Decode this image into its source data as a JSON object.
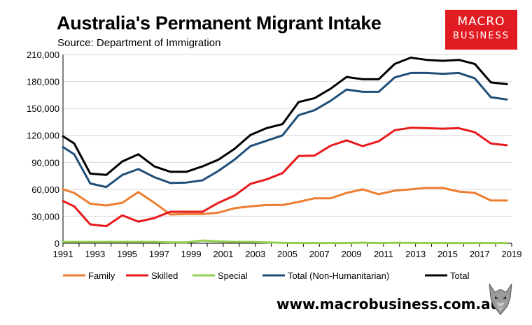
{
  "header": {
    "title": "Australia's Permanent Migrant Intake",
    "subtitle": "Source: Department of Immigration"
  },
  "brand": {
    "logo_line1": "MACRO",
    "logo_line2": "BUSINESS",
    "url": "www.macrobusiness.com.au",
    "logo_color": "#e11b22"
  },
  "chart_data": {
    "type": "line",
    "title": "Australia's Permanent Migrant Intake",
    "xlabel": "",
    "ylabel": "",
    "x": [
      1991,
      1992,
      1993,
      1994,
      1995,
      1996,
      1997,
      1998,
      1999,
      2000,
      2001,
      2002,
      2003,
      2004,
      2005,
      2006,
      2007,
      2008,
      2009,
      2010,
      2011,
      2012,
      2013,
      2014,
      2015,
      2016,
      2017,
      2018,
      2019
    ],
    "xlim": [
      1991,
      2019
    ],
    "ylim": [
      0,
      210000
    ],
    "x_ticks": [
      1991,
      1993,
      1995,
      1997,
      1999,
      2001,
      2003,
      2005,
      2007,
      2009,
      2011,
      2013,
      2015,
      2017,
      2019
    ],
    "y_ticks": [
      0,
      30000,
      60000,
      90000,
      120000,
      150000,
      180000,
      210000
    ],
    "y_tick_labels": [
      "0",
      "30,000",
      "60,000",
      "90,000",
      "120,000",
      "150,000",
      "180,000",
      "210,000"
    ],
    "grid": "horizontal",
    "legend_position": "bottom",
    "series": [
      {
        "name": "Family",
        "color": "#ed7d31",
        "points": [
          [
            1991,
            60000
          ],
          [
            1991.7,
            56000
          ],
          [
            1992.7,
            44000
          ],
          [
            1993.7,
            42000
          ],
          [
            1994.7,
            45000
          ],
          [
            1995.7,
            57000
          ],
          [
            1996.7,
            45000
          ],
          [
            1997.7,
            32000
          ],
          [
            1998.7,
            32500
          ],
          [
            1999.7,
            32500
          ],
          [
            2000.7,
            34000
          ],
          [
            2001.7,
            39000
          ],
          [
            2002.7,
            41000
          ],
          [
            2003.7,
            42500
          ],
          [
            2004.7,
            42500
          ],
          [
            2005.7,
            46000
          ],
          [
            2006.7,
            50000
          ],
          [
            2007.7,
            50000
          ],
          [
            2008.7,
            56000
          ],
          [
            2009.7,
            60000
          ],
          [
            2010.7,
            54500
          ],
          [
            2011.7,
            58500
          ],
          [
            2012.7,
            60000
          ],
          [
            2013.7,
            61500
          ],
          [
            2014.7,
            61500
          ],
          [
            2015.7,
            57500
          ],
          [
            2016.7,
            56000
          ],
          [
            2017.7,
            47500
          ],
          [
            2018.7,
            47500
          ]
        ]
      },
      {
        "name": "Skilled",
        "color": "#e8191c",
        "points": [
          [
            1991,
            47000
          ],
          [
            1991.7,
            41000
          ],
          [
            1992.7,
            21000
          ],
          [
            1993.7,
            19000
          ],
          [
            1994.7,
            31000
          ],
          [
            1995.7,
            24000
          ],
          [
            1996.7,
            28000
          ],
          [
            1997.7,
            35000
          ],
          [
            1998.7,
            35000
          ],
          [
            1999.7,
            35000
          ],
          [
            2000.7,
            45000
          ],
          [
            2001.7,
            53000
          ],
          [
            2002.7,
            66000
          ],
          [
            2003.7,
            71000
          ],
          [
            2004.7,
            78000
          ],
          [
            2005.7,
            97000
          ],
          [
            2006.7,
            97500
          ],
          [
            2007.7,
            108500
          ],
          [
            2008.7,
            114500
          ],
          [
            2009.7,
            108000
          ],
          [
            2010.7,
            113500
          ],
          [
            2011.7,
            125800
          ],
          [
            2012.7,
            128500
          ],
          [
            2013.7,
            128000
          ],
          [
            2014.7,
            127500
          ],
          [
            2015.7,
            128000
          ],
          [
            2016.7,
            123500
          ],
          [
            2017.7,
            111000
          ],
          [
            2018.7,
            109000
          ]
        ]
      },
      {
        "name": "Special",
        "color": "#92d050",
        "points": [
          [
            1991,
            1500
          ],
          [
            1991.7,
            1500
          ],
          [
            1992.7,
            1500
          ],
          [
            1993.7,
            1500
          ],
          [
            1994.7,
            1500
          ],
          [
            1995.7,
            1500
          ],
          [
            1996.7,
            1500
          ],
          [
            1997.7,
            1000
          ],
          [
            1998.7,
            1000
          ],
          [
            1999.7,
            3000
          ],
          [
            2000.7,
            2000
          ],
          [
            2001.7,
            1500
          ],
          [
            2002.7,
            1500
          ],
          [
            2003.7,
            1000
          ],
          [
            2004.7,
            500
          ],
          [
            2005.7,
            300
          ],
          [
            2006.7,
            300
          ],
          [
            2007.7,
            300
          ],
          [
            2008.7,
            300
          ],
          [
            2009.7,
            700
          ],
          [
            2010.7,
            300
          ],
          [
            2011.7,
            600
          ],
          [
            2012.7,
            500
          ],
          [
            2013.7,
            300
          ],
          [
            2014.7,
            300
          ],
          [
            2015.7,
            300
          ],
          [
            2016.7,
            300
          ],
          [
            2017.7,
            300
          ],
          [
            2018.7,
            300
          ]
        ]
      },
      {
        "name": "Total (Non-Humanitarian)",
        "color": "#1f4e79",
        "points": [
          [
            1991,
            107000
          ],
          [
            1991.7,
            99000
          ],
          [
            1992.7,
            66500
          ],
          [
            1993.7,
            62500
          ],
          [
            1994.7,
            76000
          ],
          [
            1995.7,
            82500
          ],
          [
            1996.7,
            73500
          ],
          [
            1997.7,
            67000
          ],
          [
            1998.7,
            67500
          ],
          [
            1999.7,
            70000
          ],
          [
            2000.7,
            80500
          ],
          [
            2001.7,
            93000
          ],
          [
            2002.7,
            108000
          ],
          [
            2003.7,
            114000
          ],
          [
            2004.7,
            120000
          ],
          [
            2005.7,
            142500
          ],
          [
            2006.7,
            148000
          ],
          [
            2007.7,
            158500
          ],
          [
            2008.7,
            171000
          ],
          [
            2009.7,
            168500
          ],
          [
            2010.7,
            168500
          ],
          [
            2011.7,
            184500
          ],
          [
            2012.7,
            189500
          ],
          [
            2013.7,
            189500
          ],
          [
            2014.7,
            188500
          ],
          [
            2015.7,
            189500
          ],
          [
            2016.7,
            183500
          ],
          [
            2017.7,
            162500
          ],
          [
            2018.7,
            160000
          ]
        ]
      },
      {
        "name": "Total",
        "color": "#000000",
        "points": [
          [
            1991,
            119000
          ],
          [
            1991.7,
            111000
          ],
          [
            1992.7,
            77500
          ],
          [
            1993.7,
            76000
          ],
          [
            1994.7,
            91000
          ],
          [
            1995.7,
            99000
          ],
          [
            1996.7,
            85500
          ],
          [
            1997.7,
            79500
          ],
          [
            1998.7,
            79500
          ],
          [
            1999.7,
            85500
          ],
          [
            2000.7,
            93000
          ],
          [
            2001.7,
            105000
          ],
          [
            2002.7,
            120500
          ],
          [
            2003.7,
            128000
          ],
          [
            2004.7,
            132500
          ],
          [
            2005.7,
            157000
          ],
          [
            2006.7,
            161500
          ],
          [
            2007.7,
            172000
          ],
          [
            2008.7,
            185000
          ],
          [
            2009.7,
            182500
          ],
          [
            2010.7,
            182500
          ],
          [
            2011.7,
            199500
          ],
          [
            2012.7,
            206500
          ],
          [
            2013.7,
            204000
          ],
          [
            2014.7,
            203000
          ],
          [
            2015.7,
            204000
          ],
          [
            2016.7,
            199500
          ],
          [
            2017.7,
            179000
          ],
          [
            2018.7,
            177000
          ]
        ]
      }
    ]
  }
}
